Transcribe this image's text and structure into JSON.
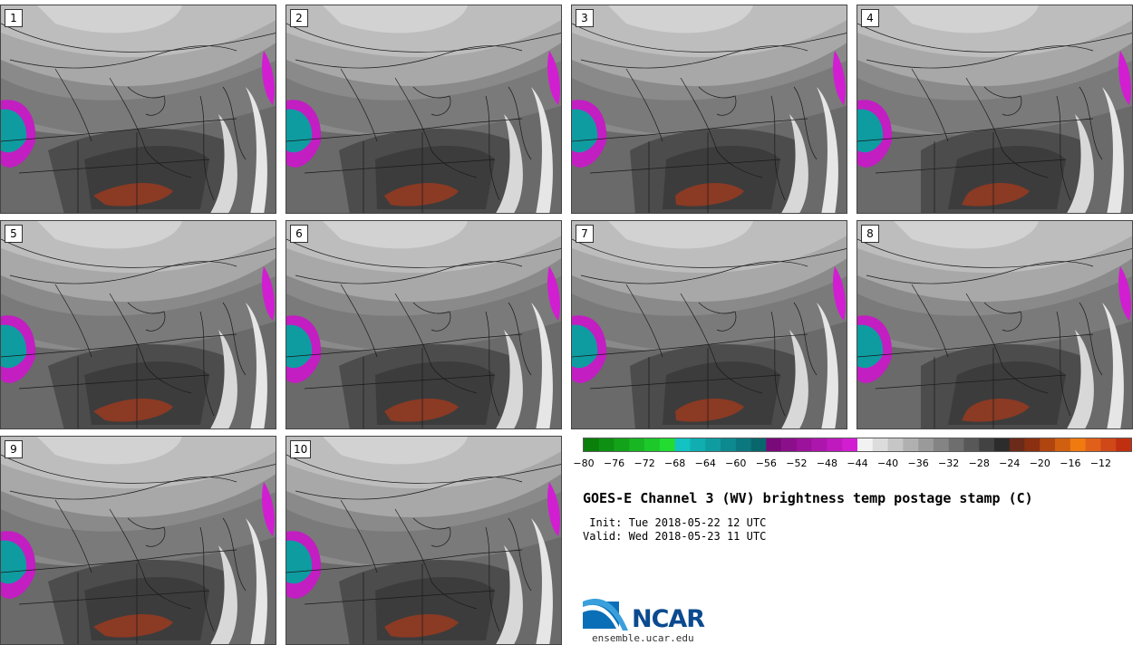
{
  "panels": [
    {
      "label": "1"
    },
    {
      "label": "2"
    },
    {
      "label": "3"
    },
    {
      "label": "4"
    },
    {
      "label": "5"
    },
    {
      "label": "6"
    },
    {
      "label": "7"
    },
    {
      "label": "8"
    },
    {
      "label": "9"
    },
    {
      "label": "10"
    }
  ],
  "colorbar": {
    "colors": [
      "#0a7f0a",
      "#0e9012",
      "#13a31a",
      "#18b622",
      "#1dc92a",
      "#22dc32",
      "#13c2c2",
      "#10aeb1",
      "#0e9ca0",
      "#0c8a8f",
      "#0a787e",
      "#08666d",
      "#7a0a7a",
      "#8b0e8b",
      "#9c129c",
      "#ad16ad",
      "#be1abe",
      "#d11ed1",
      "#f2f2f2",
      "#dcdcdc",
      "#c6c6c6",
      "#b0b0b0",
      "#9a9a9a",
      "#848484",
      "#6e6e6e",
      "#585858",
      "#424242",
      "#2c2c2c",
      "#6b2a1a",
      "#8a3010",
      "#b04510",
      "#d06010",
      "#f07a10",
      "#e0601a",
      "#d04818",
      "#c03010"
    ],
    "ticks": [
      "-80",
      "-76",
      "-72",
      "-68",
      "-64",
      "-60",
      "-56",
      "-52",
      "-48",
      "-44",
      "-40",
      "-36",
      "-32",
      "-28",
      "-24",
      "-20",
      "-16",
      "-12"
    ]
  },
  "title": "GOES-E Channel 3 (WV) brightness temp postage stamp (C)",
  "init": " Init: Tue 2018-05-22 12 UTC",
  "valid": "Valid: Wed 2018-05-23 11 UTC",
  "logo": {
    "text": "NCAR",
    "site": "ensemble.ucar.edu"
  }
}
